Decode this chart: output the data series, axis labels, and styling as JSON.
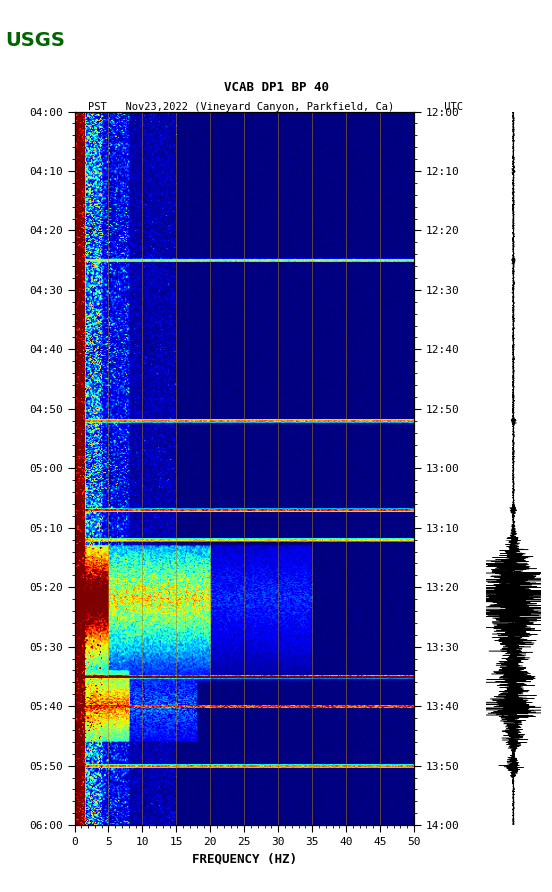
{
  "title_line1": "VCAB DP1 BP 40",
  "title_line2": "PST   Nov23,2022 (Vineyard Canyon, Parkfield, Ca)        UTC",
  "xlabel": "FREQUENCY (HZ)",
  "freq_min": 0,
  "freq_max": 50,
  "pst_ticks": [
    "04:00",
    "04:10",
    "04:20",
    "04:30",
    "04:40",
    "04:50",
    "05:00",
    "05:10",
    "05:20",
    "05:30",
    "05:40",
    "05:50",
    "06:00"
  ],
  "utc_ticks": [
    "12:00",
    "12:10",
    "12:20",
    "12:30",
    "12:40",
    "12:50",
    "13:00",
    "13:10",
    "13:20",
    "13:30",
    "13:40",
    "13:50",
    "14:00"
  ],
  "freq_ticks": [
    0,
    5,
    10,
    15,
    20,
    25,
    30,
    35,
    40,
    45,
    50
  ],
  "vertical_lines_freq": [
    5,
    10,
    15,
    20,
    25,
    30,
    35,
    40,
    45
  ],
  "background_color": "#ffffff",
  "colormap": "jet",
  "fig_width": 5.52,
  "fig_height": 8.92,
  "dpi": 100
}
